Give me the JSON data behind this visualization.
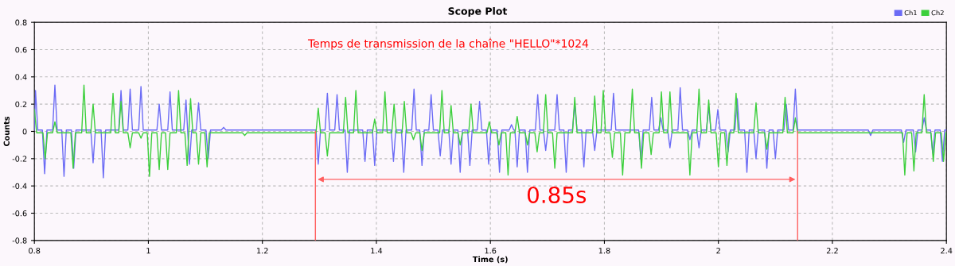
{
  "chart_data": {
    "type": "line",
    "title": "Scope Plot",
    "xlabel": "Time (s)",
    "ylabel": "Counts",
    "xlim": [
      0.8,
      2.4
    ],
    "xticks": [
      0.8,
      1,
      1.2,
      1.4,
      1.6,
      1.8,
      2,
      2.2,
      2.4
    ],
    "ylim": [
      -0.8,
      0.8
    ],
    "yticks": [
      -0.8,
      -0.6,
      -0.4,
      -0.2,
      0,
      0.2,
      0.4,
      0.6,
      0.8
    ],
    "grid": true,
    "legend": "top right",
    "line_style": "solid",
    "annotations": [
      "Temps de transmission de la chaîne \"HELLO\"*1024",
      "0.85s"
    ],
    "ref_lines": [
      {
        "axis": "x",
        "value": 1.293,
        "label": null,
        "color": "#ff6060"
      },
      {
        "axis": "x",
        "value": 2.139,
        "label": null,
        "color": "#ff6060"
      }
    ],
    "series": [
      {
        "name": "Ch1",
        "color": "#6b6bf5",
        "x": [
          0.8,
          0.802,
          0.806,
          0.814,
          0.818,
          0.822,
          0.832,
          0.836,
          0.84,
          0.848,
          0.852,
          0.856,
          0.865,
          0.869,
          0.873,
          0.899,
          0.903,
          0.907,
          0.917,
          0.921,
          0.925,
          0.948,
          0.952,
          0.956,
          0.964,
          0.968,
          0.972,
          0.983,
          0.987,
          0.991,
          1.015,
          1.019,
          1.023,
          1.034,
          1.038,
          1.042,
          1.062,
          1.066,
          1.072,
          1.076,
          1.084,
          1.088,
          1.092,
          1.101,
          1.105,
          1.109,
          1.128,
          1.132,
          1.136,
          1.294,
          1.298,
          1.302,
          1.31,
          1.314,
          1.318,
          1.327,
          1.331,
          1.335,
          1.345,
          1.349,
          1.353,
          1.376,
          1.38,
          1.384,
          1.393,
          1.397,
          1.401,
          1.426,
          1.43,
          1.434,
          1.444,
          1.448,
          1.452,
          1.462,
          1.466,
          1.47,
          1.476,
          1.48,
          1.484,
          1.492,
          1.496,
          1.5,
          1.508,
          1.512,
          1.516,
          1.527,
          1.531,
          1.535,
          1.543,
          1.547,
          1.551,
          1.56,
          1.564,
          1.568,
          1.577,
          1.581,
          1.585,
          1.593,
          1.597,
          1.601,
          1.612,
          1.616,
          1.62,
          1.633,
          1.637,
          1.641,
          1.643,
          1.647,
          1.651,
          1.661,
          1.665,
          1.669,
          1.679,
          1.683,
          1.687,
          1.693,
          1.697,
          1.701,
          1.713,
          1.717,
          1.721,
          1.729,
          1.733,
          1.737,
          1.744,
          1.748,
          1.752,
          1.76,
          1.764,
          1.768,
          1.779,
          1.783,
          1.787,
          1.812,
          1.816,
          1.82,
          1.86,
          1.864,
          1.868,
          1.879,
          1.883,
          1.887,
          1.895,
          1.899,
          1.903,
          1.911,
          1.915,
          1.919,
          1.929,
          1.933,
          1.937,
          1.946,
          1.95,
          1.954,
          1.962,
          1.966,
          1.97,
          1.979,
          1.983,
          1.987,
          1.995,
          1.999,
          2.003,
          2.013,
          2.017,
          2.021,
          2.029,
          2.033,
          2.037,
          2.046,
          2.05,
          2.054,
          2.062,
          2.066,
          2.07,
          2.081,
          2.085,
          2.089,
          2.096,
          2.1,
          2.104,
          2.115,
          2.119,
          2.123,
          2.131,
          2.135,
          2.139,
          2.263,
          2.267,
          2.271,
          2.321,
          2.325,
          2.329,
          2.342,
          2.346,
          2.35,
          2.357,
          2.361,
          2.365,
          2.372,
          2.376,
          2.38,
          2.389,
          2.393,
          2.397,
          2.4
        ],
        "values": [
          0.01,
          0.3,
          0.01,
          0.01,
          -0.31,
          0.01,
          0.01,
          0.34,
          0.01,
          0.01,
          -0.33,
          0.01,
          0.01,
          -0.27,
          0.01,
          0.01,
          -0.23,
          0.01,
          0.01,
          -0.34,
          0.01,
          0.01,
          0.3,
          0.01,
          0.01,
          0.31,
          0.01,
          0.01,
          0.33,
          0.01,
          0.01,
          0.2,
          0.01,
          0.01,
          0.29,
          0.01,
          0.01,
          0.23,
          -0.24,
          0.01,
          0.01,
          0.21,
          0.01,
          0.01,
          -0.2,
          0.01,
          0.01,
          0.03,
          0.01,
          0.01,
          -0.24,
          0.01,
          0.01,
          0.28,
          0.01,
          0.01,
          0.27,
          0.01,
          0.01,
          -0.3,
          0.01,
          0.01,
          -0.22,
          0.01,
          0.01,
          -0.25,
          0.01,
          0.01,
          -0.22,
          0.01,
          0.01,
          -0.3,
          0.01,
          0.01,
          0.31,
          0.01,
          0.01,
          -0.25,
          0.01,
          0.01,
          0.27,
          0.01,
          0.01,
          -0.18,
          0.01,
          0.01,
          -0.24,
          0.01,
          0.01,
          -0.3,
          0.01,
          0.01,
          -0.25,
          0.01,
          0.01,
          0.22,
          0.01,
          0.01,
          -0.24,
          0.01,
          0.01,
          -0.3,
          0.01,
          0.01,
          0.05,
          0.01,
          0.01,
          -0.26,
          0.01,
          0.01,
          -0.3,
          0.01,
          0.01,
          0.27,
          0.01,
          0.01,
          -0.14,
          0.01,
          0.01,
          0.27,
          0.01,
          0.01,
          -0.3,
          0.01,
          0.01,
          0.2,
          0.01,
          0.01,
          -0.26,
          0.01,
          0.01,
          -0.14,
          0.01,
          0.01,
          0.28,
          0.01,
          0.01,
          -0.2,
          0.01,
          0.01,
          0.25,
          0.01,
          0.01,
          0.1,
          0.01,
          0.01,
          -0.12,
          0.01,
          0.01,
          0.32,
          0.01,
          0.01,
          -0.06,
          0.01,
          0.01,
          -0.12,
          0.01,
          0.01,
          0.18,
          0.01,
          0.01,
          0.16,
          0.01,
          0.01,
          -0.15,
          0.01,
          0.01,
          0.24,
          0.01,
          0.01,
          -0.3,
          0.01,
          0.01,
          -0.2,
          0.01,
          0.01,
          -0.27,
          0.01,
          0.01,
          -0.2,
          0.01,
          0.01,
          0.2,
          0.01,
          0.01,
          0.31,
          0.01,
          0.01,
          -0.03,
          0.01,
          0.01,
          -0.08,
          0.01,
          0.01,
          -0.15,
          0.01,
          0.01,
          0.1,
          0.01,
          0.01,
          -0.16,
          0.01,
          0.01,
          -0.22,
          0.01,
          0.01
        ]
      },
      {
        "name": "Ch2",
        "color": "#3ccf3c",
        "x": [
          0.8,
          0.804,
          0.815,
          0.819,
          0.823,
          0.832,
          0.836,
          0.84,
          0.864,
          0.868,
          0.872,
          0.883,
          0.887,
          0.891,
          0.899,
          0.903,
          0.907,
          0.934,
          0.938,
          0.942,
          0.948,
          0.952,
          0.956,
          0.964,
          0.968,
          0.972,
          0.983,
          0.987,
          0.991,
          0.998,
          1.002,
          1.006,
          1.015,
          1.019,
          1.023,
          1.03,
          1.034,
          1.038,
          1.049,
          1.053,
          1.057,
          1.064,
          1.068,
          1.074,
          1.078,
          1.084,
          1.088,
          1.092,
          1.099,
          1.103,
          1.107,
          1.165,
          1.169,
          1.173,
          1.294,
          1.298,
          1.302,
          1.31,
          1.314,
          1.318,
          1.342,
          1.346,
          1.35,
          1.36,
          1.364,
          1.368,
          1.393,
          1.397,
          1.401,
          1.411,
          1.415,
          1.419,
          1.427,
          1.431,
          1.435,
          1.445,
          1.449,
          1.453,
          1.461,
          1.465,
          1.469,
          1.476,
          1.48,
          1.484,
          1.511,
          1.515,
          1.519,
          1.527,
          1.531,
          1.535,
          1.543,
          1.547,
          1.551,
          1.562,
          1.566,
          1.57,
          1.594,
          1.598,
          1.602,
          1.611,
          1.615,
          1.619,
          1.627,
          1.631,
          1.635,
          1.643,
          1.647,
          1.651,
          1.661,
          1.665,
          1.669,
          1.678,
          1.682,
          1.686,
          1.693,
          1.697,
          1.701,
          1.709,
          1.713,
          1.717,
          1.744,
          1.748,
          1.752,
          1.779,
          1.783,
          1.787,
          1.794,
          1.798,
          1.802,
          1.81,
          1.814,
          1.818,
          1.828,
          1.832,
          1.836,
          1.845,
          1.849,
          1.853,
          1.861,
          1.865,
          1.869,
          1.878,
          1.882,
          1.886,
          1.896,
          1.9,
          1.904,
          1.911,
          1.915,
          1.919,
          1.946,
          1.95,
          1.954,
          1.962,
          1.966,
          1.97,
          1.979,
          1.983,
          1.987,
          1.996,
          2.0,
          2.004,
          2.011,
          2.015,
          2.019,
          2.027,
          2.031,
          2.035,
          2.062,
          2.066,
          2.07,
          2.081,
          2.085,
          2.089,
          2.113,
          2.117,
          2.121,
          2.131,
          2.135,
          2.139,
          2.323,
          2.327,
          2.331,
          2.339,
          2.343,
          2.347,
          2.357,
          2.361,
          2.365,
          2.373,
          2.377,
          2.381,
          2.391,
          2.395,
          2.399,
          2.4
        ],
        "values": [
          0.16,
          -0.01,
          -0.01,
          -0.2,
          -0.01,
          -0.01,
          0.07,
          -0.01,
          -0.01,
          -0.27,
          -0.01,
          -0.01,
          0.34,
          -0.01,
          -0.01,
          0.2,
          -0.01,
          -0.01,
          0.28,
          -0.01,
          -0.01,
          0.22,
          -0.01,
          -0.01,
          -0.12,
          -0.01,
          -0.01,
          -0.05,
          -0.01,
          -0.01,
          -0.33,
          -0.01,
          -0.01,
          -0.28,
          -0.01,
          -0.01,
          -0.28,
          -0.01,
          -0.01,
          0.3,
          -0.01,
          -0.01,
          -0.25,
          0.24,
          -0.01,
          -0.01,
          -0.24,
          -0.01,
          -0.01,
          -0.26,
          -0.01,
          -0.01,
          -0.03,
          -0.01,
          -0.01,
          0.17,
          -0.01,
          -0.01,
          -0.18,
          -0.01,
          -0.01,
          0.25,
          -0.01,
          -0.01,
          0.3,
          -0.01,
          -0.01,
          0.09,
          -0.01,
          -0.01,
          0.29,
          -0.01,
          -0.01,
          0.2,
          -0.01,
          -0.01,
          0.22,
          -0.01,
          -0.01,
          -0.06,
          -0.01,
          -0.01,
          -0.14,
          -0.01,
          -0.01,
          0.3,
          -0.01,
          -0.01,
          0.19,
          -0.01,
          -0.01,
          -0.1,
          -0.01,
          -0.01,
          0.2,
          -0.01,
          -0.01,
          0.07,
          -0.01,
          -0.01,
          -0.1,
          -0.01,
          -0.01,
          -0.32,
          -0.01,
          -0.01,
          0.11,
          -0.01,
          -0.01,
          -0.1,
          -0.01,
          -0.01,
          -0.15,
          -0.01,
          -0.01,
          0.27,
          -0.01,
          -0.01,
          -0.27,
          -0.01,
          -0.01,
          0.25,
          -0.01,
          -0.01,
          0.26,
          -0.01,
          -0.01,
          0.3,
          -0.01,
          -0.01,
          -0.19,
          -0.01,
          -0.01,
          -0.32,
          -0.01,
          -0.01,
          0.31,
          -0.01,
          -0.01,
          -0.27,
          -0.01,
          -0.01,
          -0.17,
          -0.01,
          -0.01,
          0.29,
          -0.01,
          -0.01,
          0.29,
          -0.01,
          -0.01,
          -0.32,
          -0.01,
          -0.01,
          0.31,
          -0.01,
          -0.01,
          0.23,
          -0.01,
          -0.01,
          -0.26,
          -0.01,
          -0.01,
          -0.25,
          -0.01,
          -0.01,
          0.28,
          -0.01,
          -0.01,
          0.21,
          -0.01,
          -0.01,
          -0.13,
          -0.01,
          -0.01,
          0.25,
          -0.01,
          -0.01,
          0.1,
          -0.01,
          -0.01,
          -0.32,
          -0.01,
          -0.01,
          -0.29,
          -0.01,
          -0.01,
          0.27,
          -0.01,
          -0.01,
          -0.22,
          -0.01,
          -0.01,
          -0.22,
          -0.01,
          -0.01
        ]
      }
    ]
  }
}
